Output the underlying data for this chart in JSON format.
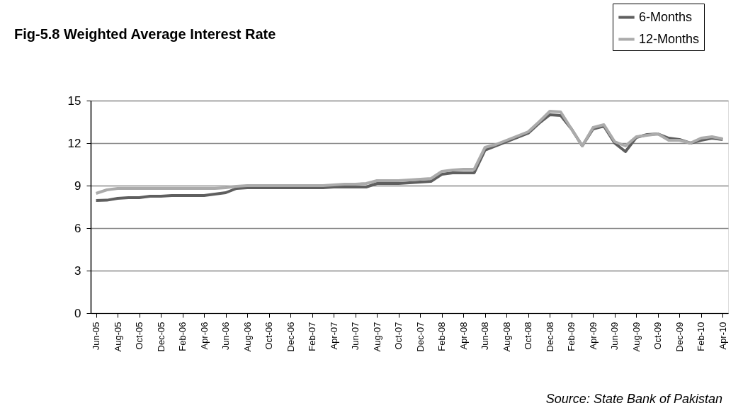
{
  "chart_data": {
    "type": "line",
    "title": "Fig-5.8 Weighted Average Interest Rate",
    "categories": [
      "Jun-05",
      null,
      "Aug-05",
      null,
      "Oct-05",
      null,
      "Dec-05",
      null,
      "Feb-06",
      null,
      "Apr-06",
      null,
      "Jun-06",
      null,
      "Aug-06",
      null,
      "Oct-06",
      null,
      "Dec-06",
      null,
      "Feb-07",
      null,
      "Apr-07",
      null,
      "Jun-07",
      null,
      "Aug-07",
      null,
      "Oct-07",
      null,
      "Dec-07",
      null,
      "Feb-08",
      null,
      "Apr-08",
      null,
      "Jun-08",
      null,
      "Aug-08",
      null,
      "Oct-08",
      null,
      "Dec-08",
      null,
      "Feb-09",
      null,
      "Apr-09",
      null,
      "Jun-09",
      null,
      "Aug-09",
      null,
      "Oct-09",
      null,
      "Dec-09",
      null,
      "Feb-10",
      null,
      "Apr-10"
    ],
    "series": [
      {
        "name": "6-Months",
        "color": "#5f5f5f",
        "values": [
          7.95,
          7.97,
          8.1,
          8.15,
          8.15,
          8.25,
          8.25,
          8.3,
          8.3,
          8.3,
          8.3,
          8.4,
          8.5,
          8.8,
          8.85,
          8.85,
          8.85,
          8.85,
          8.85,
          8.85,
          8.85,
          8.85,
          8.9,
          8.9,
          8.9,
          8.9,
          9.15,
          9.15,
          9.15,
          9.2,
          9.25,
          9.3,
          9.8,
          9.9,
          9.9,
          9.9,
          11.5,
          11.8,
          12.1,
          12.4,
          12.7,
          13.4,
          14.0,
          13.95,
          13.0,
          11.8,
          13.0,
          13.2,
          12.0,
          11.4,
          12.4,
          12.6,
          12.65,
          12.35,
          12.25,
          12.0,
          12.2,
          12.35,
          12.25
        ]
      },
      {
        "name": "12-Months",
        "color": "#ababab",
        "values": [
          8.45,
          8.7,
          8.8,
          8.8,
          8.8,
          8.8,
          8.8,
          8.8,
          8.8,
          8.8,
          8.8,
          8.8,
          8.85,
          8.95,
          9.0,
          9.0,
          9.0,
          9.0,
          9.0,
          9.0,
          9.0,
          9.0,
          9.05,
          9.1,
          9.1,
          9.15,
          9.35,
          9.35,
          9.35,
          9.4,
          9.45,
          9.5,
          10.0,
          10.1,
          10.15,
          10.15,
          11.7,
          11.9,
          12.2,
          12.5,
          12.8,
          13.5,
          14.25,
          14.2,
          13.0,
          11.8,
          13.1,
          13.3,
          12.1,
          11.8,
          12.45,
          12.55,
          12.65,
          12.2,
          12.2,
          12.0,
          12.35,
          12.45,
          12.3
        ]
      }
    ],
    "ylim": [
      0,
      15
    ],
    "yticks": [
      0,
      3,
      6,
      9,
      12,
      15
    ],
    "grid": "y",
    "legend": "top right",
    "line_style": "solid",
    "marker": "none",
    "annotations": [
      "Source: State Bank of Pakistan"
    ]
  }
}
